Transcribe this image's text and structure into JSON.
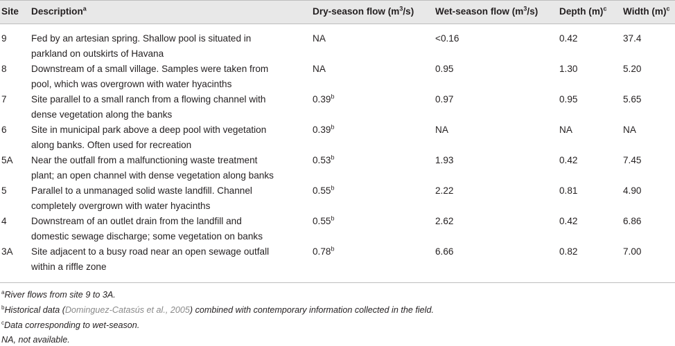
{
  "header": {
    "site": "Site",
    "description": "Description",
    "description_sup": "a",
    "dry_flow": "Dry-season flow (m",
    "dry_flow_sup": "3",
    "dry_flow_tail": "/s)",
    "wet_flow": "Wet-season flow (m",
    "wet_flow_sup": "3",
    "wet_flow_tail": "/s)",
    "depth": "Depth (m)",
    "depth_sup": "c",
    "width": "Width (m)",
    "width_sup": "c"
  },
  "rows": [
    {
      "site": "9",
      "desc1": "Fed by an artesian spring. Shallow pool is situated in",
      "desc2": "parkland on outskirts of Havana",
      "dry": "NA",
      "dry_sup": "",
      "wet": "<0.16",
      "depth": "0.42",
      "width": "37.4"
    },
    {
      "site": "8",
      "desc1": "Downstream of a small village. Samples were taken from",
      "desc2": "pool, which was overgrown with water hyacinths",
      "dry": "NA",
      "dry_sup": "",
      "wet": "0.95",
      "depth": "1.30",
      "width": "5.20"
    },
    {
      "site": "7",
      "desc1": "Site parallel to a small ranch from a flowing channel with",
      "desc2": "dense vegetation along the banks",
      "dry": "0.39",
      "dry_sup": "b",
      "wet": "0.97",
      "depth": "0.95",
      "width": "5.65"
    },
    {
      "site": "6",
      "desc1": "Site in municipal park above a deep pool with vegetation",
      "desc2": "along banks. Often used for recreation",
      "dry": "0.39",
      "dry_sup": "b",
      "wet": "NA",
      "depth": "NA",
      "width": "NA"
    },
    {
      "site": "5A",
      "desc1": "Near the outfall from a malfunctioning waste treatment",
      "desc2": "plant; an open channel with dense vegetation along banks",
      "dry": "0.53",
      "dry_sup": "b",
      "wet": "1.93",
      "depth": "0.42",
      "width": "7.45"
    },
    {
      "site": "5",
      "desc1": "Parallel to a unmanaged solid waste landfill. Channel",
      "desc2": "completely overgrown with water hyacinths",
      "dry": "0.55",
      "dry_sup": "b",
      "wet": "2.22",
      "depth": "0.81",
      "width": "4.90"
    },
    {
      "site": "4",
      "desc1": "Downstream of an outlet drain from the landfill and",
      "desc2": "domestic sewage discharge; some vegetation on banks",
      "dry": "0.55",
      "dry_sup": "b",
      "wet": "2.62",
      "depth": "0.42",
      "width": "6.86"
    },
    {
      "site": "3A",
      "desc1": "Site adjacent to a busy road near an open sewage outfall",
      "desc2": "within a riffle zone",
      "dry": "0.78",
      "dry_sup": "b",
      "wet": "6.66",
      "depth": "0.82",
      "width": "7.00"
    }
  ],
  "footnotes": {
    "a_mark": "a",
    "a_text": "River flows from site 9 to 3A.",
    "b_mark": "b",
    "b_pre": "Historical data (",
    "b_link": "Dominguez-Catasús et al., 2005",
    "b_post": ") combined with contemporary information collected in the field.",
    "c_mark": "c",
    "c_text": "Data corresponding to wet-season.",
    "na_text": "NA, not available."
  }
}
